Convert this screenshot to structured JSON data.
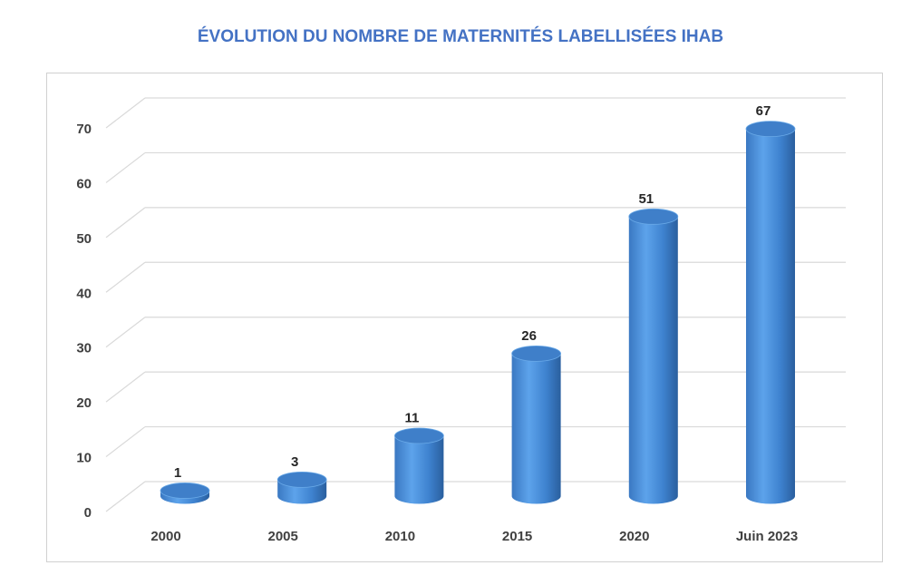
{
  "chart_data": {
    "type": "bar",
    "style": "3d-cylinder",
    "title": "ÉVOLUTION DU NOMBRE DE MATERNITÉS LABELLISÉES IHAB",
    "xlabel": "",
    "ylabel": "",
    "categories": [
      "2000",
      "2005",
      "2010",
      "2015",
      "2020",
      "Juin 2023"
    ],
    "values": [
      1,
      3,
      11,
      26,
      51,
      67
    ],
    "data_labels": [
      "1",
      "3",
      "11",
      "26",
      "51",
      "67"
    ],
    "ylim": [
      0,
      70
    ],
    "yticks": [
      0,
      10,
      20,
      30,
      40,
      50,
      60,
      70
    ],
    "ytick_labels": [
      "0",
      "10",
      "20",
      "30",
      "40",
      "50",
      "60",
      "70"
    ],
    "grid": true,
    "legend": "none",
    "colors": {
      "bar": "#4A90D9",
      "bar_dark": "#2E6AAE",
      "bar_top": "#3F7FC9",
      "title": "#4472C4",
      "grid": "#d9d9d9"
    }
  }
}
